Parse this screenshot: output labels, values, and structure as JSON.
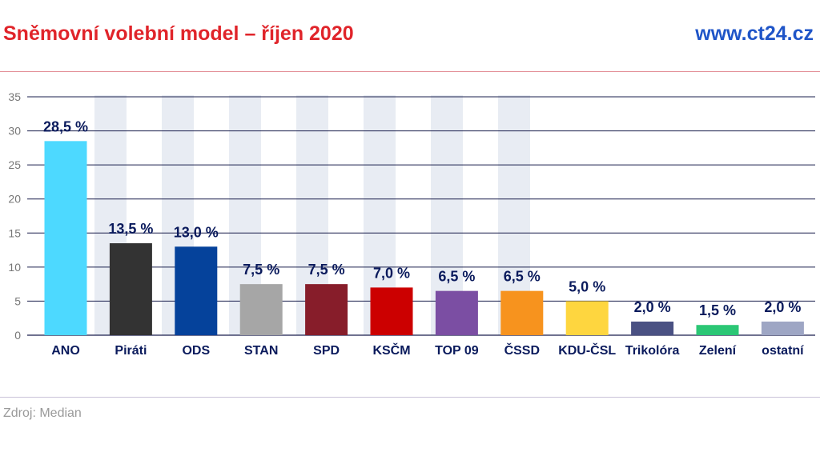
{
  "header": {
    "title": "Sněmovní volební model – říjen 2020",
    "site": "www.ct24.cz"
  },
  "footer": {
    "source": "Zdroj: Median"
  },
  "colors": {
    "title": "#e0242a",
    "site": "#1f55c8",
    "label": "#0a1a5c",
    "grid": "#1a1f4d",
    "watermark": "#e8ecf3"
  },
  "chart_data": {
    "type": "bar",
    "categories": [
      "ANO",
      "Piráti",
      "ODS",
      "STAN",
      "SPD",
      "KSČM",
      "TOP 09",
      "ČSSD",
      "KDU-ČSL",
      "Trikolóra",
      "Zelení",
      "ostatní"
    ],
    "values": [
      28.5,
      13.5,
      13.0,
      7.5,
      7.5,
      7.0,
      6.5,
      6.5,
      5.0,
      2.0,
      1.5,
      2.0
    ],
    "data_labels": [
      "28,5 %",
      "13,5 %",
      "13,0 %",
      "7,5 %",
      "7,5 %",
      "7,0 %",
      "6,5 %",
      "6,5 %",
      "5,0 %",
      "2,0 %",
      "1,5 %",
      "2,0 %"
    ],
    "colors": [
      "#4dd9ff",
      "#333333",
      "#05429b",
      "#a6a6a6",
      "#871d2a",
      "#cc0000",
      "#7b4ea3",
      "#f7931e",
      "#fed63f",
      "#4a5183",
      "#2bc775",
      "#9ea6c4"
    ],
    "yticks": [
      "0",
      "5",
      "10",
      "15",
      "20",
      "25",
      "30",
      "35"
    ],
    "ylim": [
      0,
      35
    ],
    "grid": true,
    "legend": "none"
  }
}
